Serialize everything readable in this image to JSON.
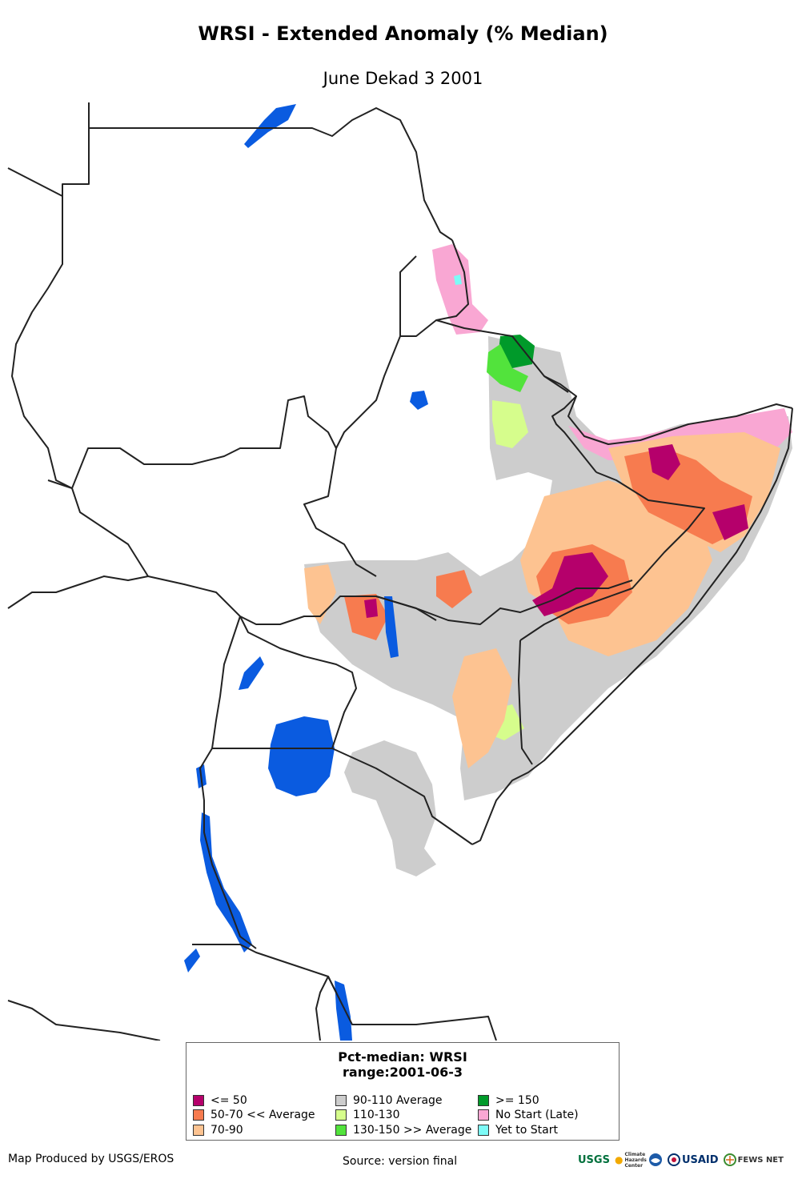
{
  "title": "WRSI - Extended Anomaly (% Median)",
  "subtitle": "June Dekad 3 2001",
  "legend": {
    "title_line1": "Pct-median: WRSI",
    "title_line2": "range:2001-06-3",
    "items": [
      {
        "label": "<= 50",
        "color": "#b5006b"
      },
      {
        "label": "50-70 << Average",
        "color": "#f77b4f"
      },
      {
        "label": "70-90",
        "color": "#fdc391"
      },
      {
        "label": "90-110 Average",
        "color": "#cdcdcd"
      },
      {
        "label": "110-130",
        "color": "#d6fd8c"
      },
      {
        "label": "130-150 >> Average",
        "color": "#52e33c"
      },
      {
        "label": ">= 150",
        "color": "#009a2a"
      },
      {
        "label": "No Start (Late)",
        "color": "#f9a7d3"
      },
      {
        "label": "Yet to Start",
        "color": "#7dfbf7"
      }
    ]
  },
  "footer": {
    "produced_by": "Map Produced by USGS/EROS",
    "source": "Source: version final"
  },
  "logos": {
    "usgs": "USGS",
    "chc": "Climate Hazards Center",
    "usaid": "USAID",
    "fewsnet": "FEWS NET"
  },
  "colors": {
    "water": "#0a5be0",
    "border": "#222222"
  }
}
